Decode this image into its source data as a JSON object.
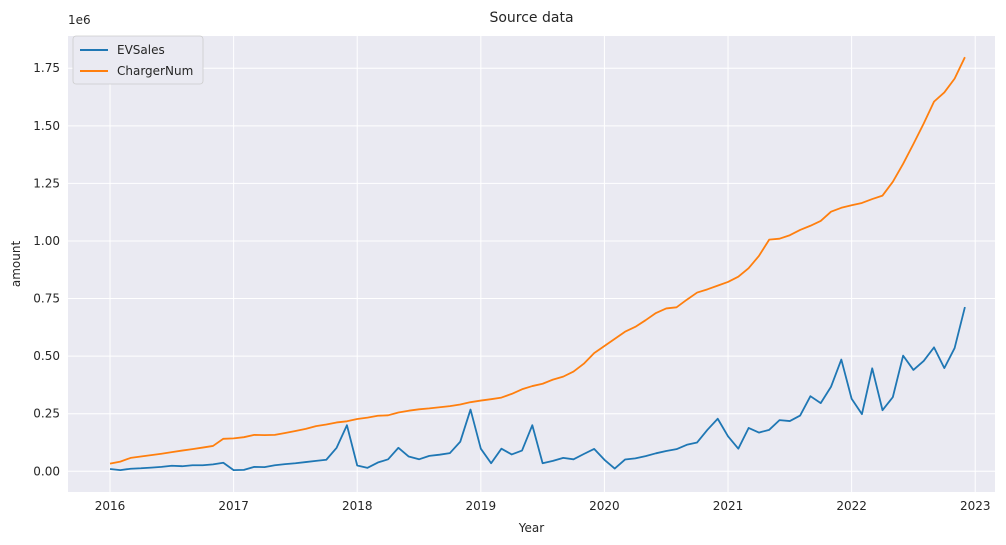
{
  "chart_data": {
    "type": "line",
    "title": "Source data",
    "xlabel": "Year",
    "ylabel": "amount",
    "offset_label": "1e6",
    "grid": true,
    "legend_position": "top-left",
    "xlim": [
      2015.66,
      2023.16
    ],
    "ylim": [
      -90000,
      1890000
    ],
    "x_ticks": [
      2016,
      2017,
      2018,
      2019,
      2020,
      2021,
      2022,
      2023
    ],
    "x_tick_labels": [
      "2016",
      "2017",
      "2018",
      "2019",
      "2020",
      "2021",
      "2022",
      "2023"
    ],
    "y_ticks": [
      0,
      250000,
      500000,
      750000,
      1000000,
      1250000,
      1500000,
      1750000
    ],
    "y_tick_labels": [
      "0.00",
      "0.25",
      "0.50",
      "0.75",
      "1.00",
      "1.25",
      "1.50",
      "1.75"
    ],
    "x_start_year": 2016,
    "x_months": 84,
    "series": [
      {
        "name": "EVSales",
        "color": "#1f77b4",
        "values": [
          10000,
          5000,
          11000,
          13000,
          16000,
          19000,
          24000,
          22000,
          26000,
          26000,
          30000,
          37000,
          5000,
          6000,
          19000,
          18000,
          26000,
          31000,
          35000,
          40000,
          45000,
          50000,
          102000,
          200000,
          25000,
          15000,
          38000,
          52000,
          102000,
          64000,
          52000,
          67000,
          72000,
          79000,
          128000,
          268000,
          98000,
          35000,
          98000,
          73000,
          90000,
          200000,
          35000,
          45000,
          58000,
          52000,
          75000,
          97000,
          50000,
          12000,
          51000,
          56000,
          66000,
          78000,
          88000,
          96000,
          115000,
          125000,
          180000,
          228000,
          152000,
          98000,
          188000,
          168000,
          180000,
          222000,
          218000,
          242000,
          326000,
          296000,
          367000,
          485000,
          315000,
          248000,
          447000,
          265000,
          322000,
          502000,
          440000,
          479000,
          538000,
          448000,
          535000,
          713000
        ]
      },
      {
        "name": "ChargerNum",
        "color": "#ff7f0e",
        "values": [
          33000,
          42000,
          58000,
          64000,
          70000,
          76000,
          83000,
          90000,
          96000,
          103000,
          110000,
          141000,
          143000,
          148000,
          158000,
          157000,
          158000,
          166000,
          175000,
          184000,
          196000,
          203000,
          212000,
          217000,
          227000,
          233000,
          241000,
          243000,
          255000,
          263000,
          269000,
          273000,
          278000,
          283000,
          290000,
          300000,
          307000,
          313000,
          320000,
          336000,
          356000,
          370000,
          380000,
          398000,
          411000,
          433000,
          467000,
          513000,
          544000,
          575000,
          606000,
          627000,
          656000,
          687000,
          707000,
          712000,
          745000,
          776000,
          790000,
          806000,
          822000,
          845000,
          882000,
          935000,
          1006000,
          1010000,
          1025000,
          1048000,
          1066000,
          1087000,
          1127000,
          1144000,
          1155000,
          1165000,
          1182000,
          1197000,
          1257000,
          1335000,
          1421000,
          1510000,
          1605000,
          1645000,
          1705000,
          1798000
        ]
      }
    ]
  }
}
